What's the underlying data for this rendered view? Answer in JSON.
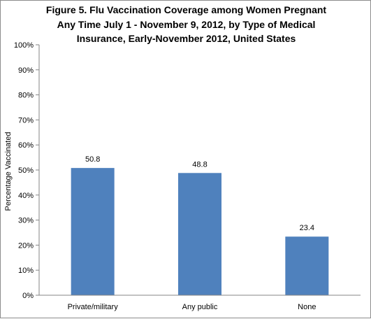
{
  "chart_data": {
    "type": "bar",
    "title": [
      "Figure 5. Flu Vaccination Coverage among Women Pregnant",
      "Any Time July 1 - November 9, 2012, by Type of Medical",
      "Insurance, Early-November 2012, United States"
    ],
    "categories": [
      "Private/military",
      "Any public",
      "None"
    ],
    "values": [
      50.8,
      48.8,
      23.4
    ],
    "data_labels": [
      "50.8",
      "48.8",
      "23.4"
    ],
    "xlabel": "",
    "ylabel": "Percentage Vaccinated",
    "ylim": [
      0,
      100
    ],
    "yticks": [
      "0%",
      "10%",
      "20%",
      "30%",
      "40%",
      "50%",
      "60%",
      "70%",
      "80%",
      "90%",
      "100%"
    ],
    "grid": false,
    "legend": "none",
    "bar_color": "#4f81bd"
  }
}
